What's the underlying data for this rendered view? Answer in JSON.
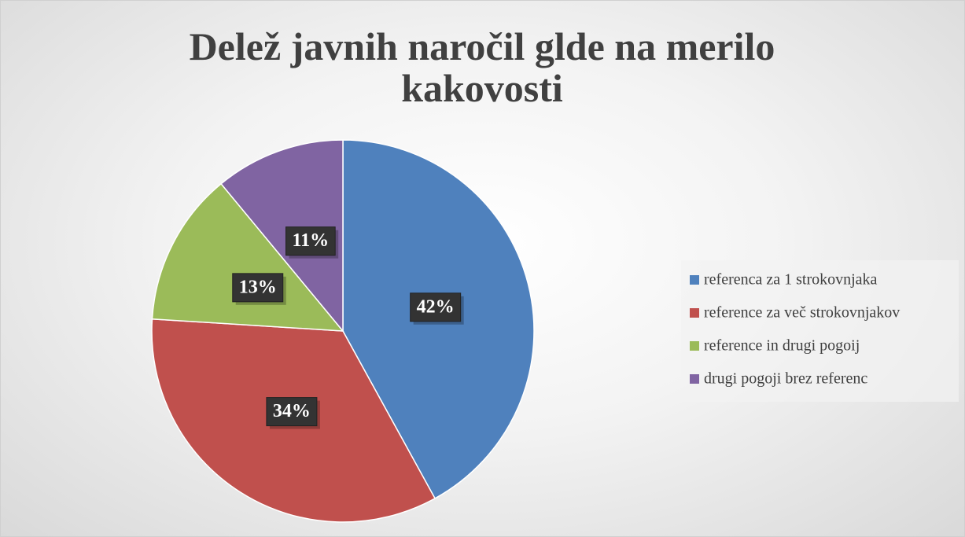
{
  "chart_data": {
    "type": "pie",
    "title": "Delež javnih naročil glde na merilo kakovosti",
    "categories": [
      "referenca za 1 strokovnjaka",
      "reference za več strokovnjakov",
      "reference in drugi pogoij",
      "drugi pogoji brez referenc"
    ],
    "values": [
      42,
      34,
      13,
      11
    ],
    "value_labels": [
      "42%",
      "34%",
      "13%",
      "11%"
    ],
    "colors": [
      "#4f81bd",
      "#c0504d",
      "#9bbb59",
      "#8064a2"
    ],
    "legend": "right"
  }
}
